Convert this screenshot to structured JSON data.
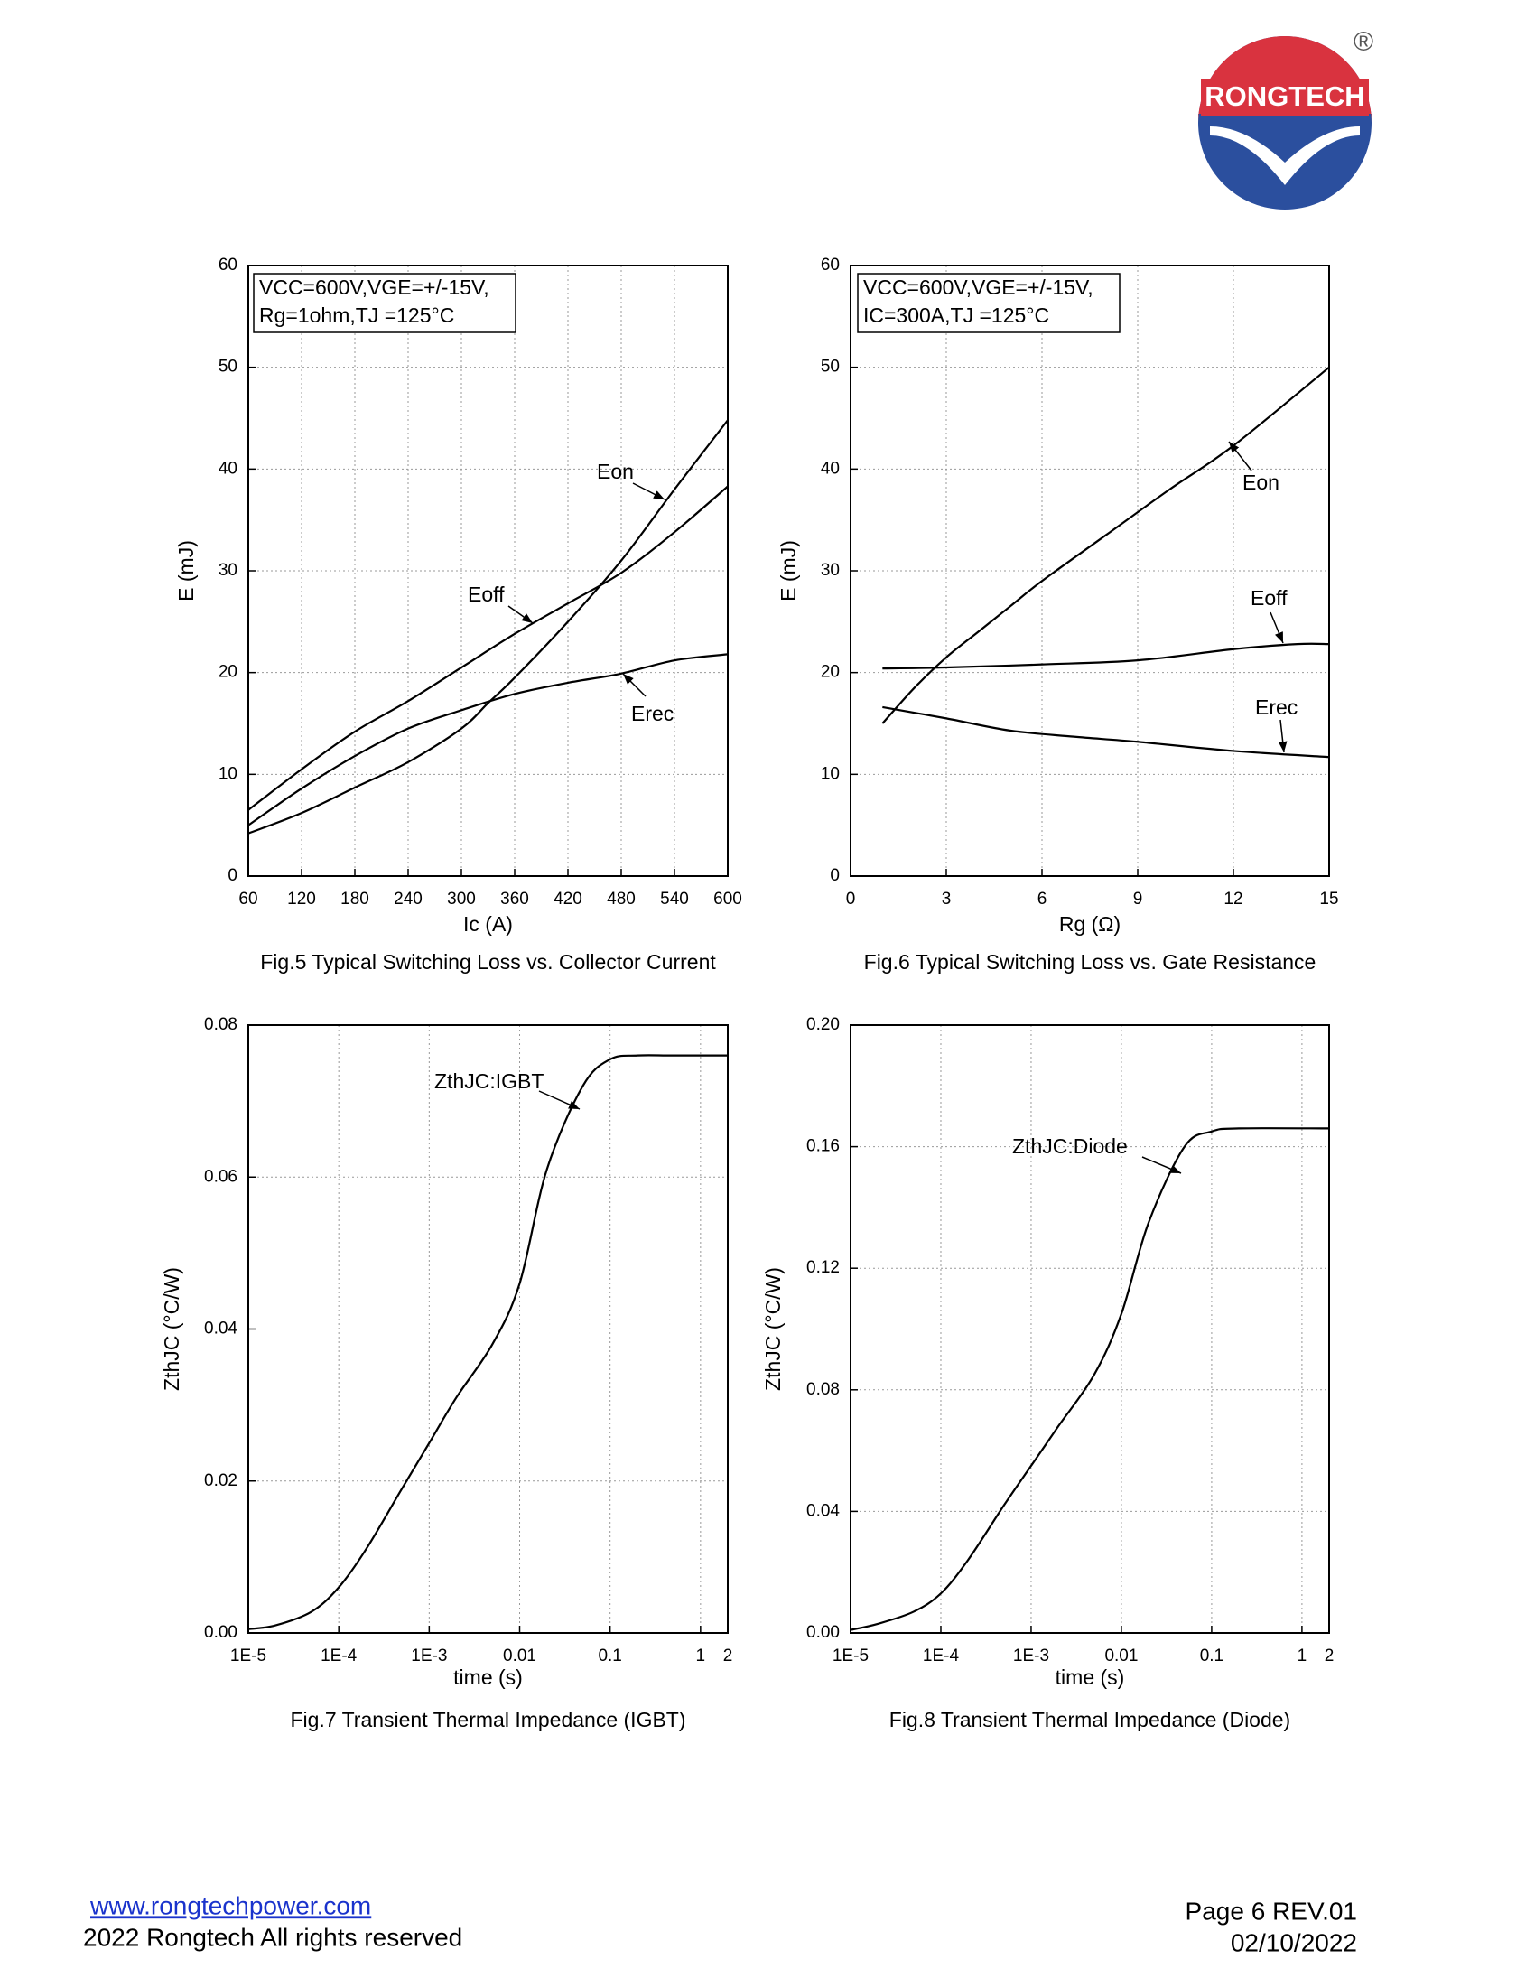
{
  "header": {
    "logo": "RONGTECH",
    "registered": "®"
  },
  "chart_data": [
    {
      "type": "line",
      "title": "Fig.5 Typical Switching Loss vs. Collector Current",
      "xlabel": "Ic (A)",
      "ylabel": "E (mJ)",
      "conditions": [
        "VCC=600V,VGE=+/-15V,",
        "Rg=1ohm,TJ =125°C"
      ],
      "xlim": [
        60,
        600
      ],
      "xticks": [
        60,
        120,
        180,
        240,
        300,
        360,
        420,
        480,
        540,
        600
      ],
      "ylim": [
        0,
        60
      ],
      "yticks": [
        0,
        10,
        20,
        30,
        40,
        50,
        60
      ],
      "grid": true,
      "series": [
        {
          "name": "Eon",
          "color": "#000000",
          "x": [
            60,
            120,
            180,
            240,
            300,
            330,
            360,
            420,
            480,
            540,
            600
          ],
          "values": [
            4.2,
            6.2,
            8.7,
            11.2,
            14.5,
            17,
            19.5,
            25,
            31,
            38,
            44.8
          ]
        },
        {
          "name": "Eoff",
          "color": "#000000",
          "x": [
            60,
            120,
            180,
            240,
            300,
            360,
            420,
            480,
            540,
            600
          ],
          "values": [
            6.5,
            10.5,
            14.2,
            17.2,
            20.5,
            23.8,
            26.8,
            29.8,
            33.8,
            38.3
          ]
        },
        {
          "name": "Erec",
          "color": "#000000",
          "x": [
            60,
            120,
            180,
            240,
            300,
            360,
            420,
            480,
            540,
            600
          ],
          "values": [
            5,
            8.6,
            11.8,
            14.5,
            16.3,
            17.9,
            19,
            19.9,
            21.2,
            21.8
          ]
        }
      ]
    },
    {
      "type": "line",
      "title": "Fig.6 Typical Switching Loss vs. Gate Resistance",
      "xlabel": "Rg (Ω)",
      "ylabel": "E (mJ)",
      "conditions": [
        "VCC=600V,VGE=+/-15V,",
        "IC=300A,TJ =125°C"
      ],
      "xlim": [
        0,
        15
      ],
      "xticks": [
        0,
        3,
        6,
        9,
        12,
        15
      ],
      "ylim": [
        0,
        60
      ],
      "yticks": [
        0,
        10,
        20,
        30,
        40,
        50,
        60
      ],
      "grid": true,
      "series": [
        {
          "name": "Eon",
          "color": "#000000",
          "x": [
            1,
            2,
            3,
            4,
            5,
            6,
            8,
            10,
            12,
            15
          ],
          "values": [
            15,
            18.5,
            21.5,
            24,
            26.5,
            29,
            33.5,
            38,
            42.3,
            50
          ]
        },
        {
          "name": "Eoff",
          "color": "#000000",
          "x": [
            1,
            3,
            6,
            9,
            12,
            14,
            15
          ],
          "values": [
            20.4,
            20.5,
            20.8,
            21.2,
            22.3,
            22.8,
            22.8
          ]
        },
        {
          "name": "Erec",
          "color": "#000000",
          "x": [
            1,
            3,
            5,
            7,
            9,
            12,
            15
          ],
          "values": [
            16.6,
            15.5,
            14.3,
            13.7,
            13.2,
            12.3,
            11.7
          ]
        }
      ]
    },
    {
      "type": "line",
      "title": "Fig.7 Transient Thermal Impedance (IGBT)",
      "xlabel": "time (s)",
      "ylabel": "ZthJC (°C/W)",
      "xscale": "log",
      "xlim": [
        1e-05,
        2
      ],
      "xticks": [
        {
          "value": 1e-05,
          "label": "1E-5"
        },
        {
          "value": 0.0001,
          "label": "1E-4"
        },
        {
          "value": 0.001,
          "label": "1E-3"
        },
        0.01,
        0.1,
        1,
        2
      ],
      "ylim": [
        0,
        0.08
      ],
      "yticks": [
        {
          "value": 0,
          "label": "0.00"
        },
        {
          "value": 0.02,
          "label": "0.02"
        },
        {
          "value": 0.04,
          "label": "0.04"
        },
        {
          "value": 0.06,
          "label": "0.06"
        },
        {
          "value": 0.08,
          "label": "0.08"
        }
      ],
      "grid": true,
      "series": [
        {
          "name": "ZthJC:IGBT",
          "color": "#000000",
          "x": [
            1e-05,
            2e-05,
            5e-05,
            0.0001,
            0.0002,
            0.0005,
            0.001,
            0.002,
            0.005,
            0.01,
            0.02,
            0.05,
            0.1,
            0.2,
            0.5,
            2
          ],
          "values": [
            0.0005,
            0.001,
            0.0028,
            0.006,
            0.011,
            0.019,
            0.025,
            0.031,
            0.038,
            0.046,
            0.061,
            0.072,
            0.0755,
            0.076,
            0.076,
            0.076
          ]
        }
      ]
    },
    {
      "type": "line",
      "title": "Fig.8 Transient Thermal Impedance (Diode)",
      "xlabel": "time (s)",
      "ylabel": "ZthJC (°C/W)",
      "xscale": "log",
      "xlim": [
        1e-05,
        2
      ],
      "xticks": [
        {
          "value": 1e-05,
          "label": "1E-5"
        },
        {
          "value": 0.0001,
          "label": "1E-4"
        },
        {
          "value": 0.001,
          "label": "1E-3"
        },
        0.01,
        0.1,
        1,
        2
      ],
      "ylim": [
        0,
        0.2
      ],
      "yticks": [
        {
          "value": 0,
          "label": "0.00"
        },
        {
          "value": 0.04,
          "label": "0.04"
        },
        {
          "value": 0.08,
          "label": "0.08"
        },
        {
          "value": 0.12,
          "label": "0.12"
        },
        {
          "value": 0.16,
          "label": "0.16"
        },
        {
          "value": 0.2,
          "label": "0.20"
        }
      ],
      "grid": true,
      "series": [
        {
          "name": "ZthJC:Diode",
          "color": "#000000",
          "x": [
            1e-05,
            2e-05,
            5e-05,
            0.0001,
            0.0002,
            0.0005,
            0.001,
            0.002,
            0.005,
            0.01,
            0.02,
            0.05,
            0.1,
            0.2,
            2
          ],
          "values": [
            0.001,
            0.003,
            0.007,
            0.013,
            0.024,
            0.042,
            0.055,
            0.068,
            0.085,
            0.105,
            0.135,
            0.16,
            0.165,
            0.166,
            0.166
          ]
        }
      ]
    }
  ],
  "footer": {
    "website": "www.rongtechpower.com",
    "copyright": "2022 Rongtech All rights reserved",
    "page": "Page 6  REV.01",
    "date": "02/10/2022"
  }
}
